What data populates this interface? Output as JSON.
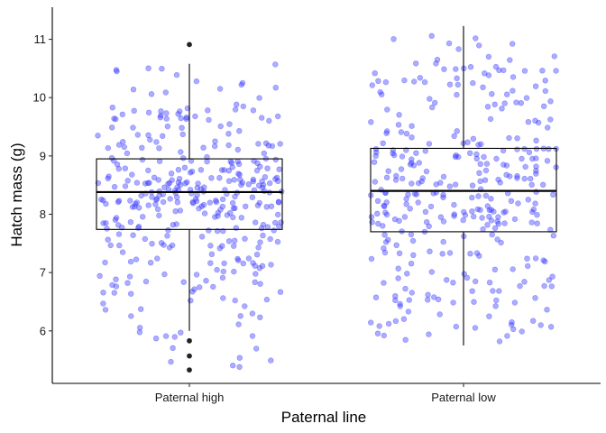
{
  "chart_data": {
    "type": "box",
    "xlabel": "Paternal line",
    "ylabel": "Hatch mass (g)",
    "categories": [
      "Paternal high",
      "Paternal low"
    ],
    "ylim": [
      5.1,
      11.55
    ],
    "y_ticks": [
      6,
      7,
      8,
      9,
      10,
      11
    ],
    "grid": false,
    "jitter_color": "#3333ff",
    "box_color": "#000000",
    "outlier_color": "#222222",
    "boxes": [
      {
        "category": "Paternal high",
        "q1": 7.74,
        "median": 8.38,
        "q3": 8.95,
        "whisker_low": 6.0,
        "whisker_high": 10.58,
        "outliers": [
          10.91,
          5.83,
          5.57,
          5.33
        ],
        "n_points": 360,
        "min": 5.33,
        "max": 10.91
      },
      {
        "category": "Paternal low",
        "q1": 7.7,
        "median": 8.4,
        "q3": 9.13,
        "whisker_low": 5.75,
        "whisker_high": 11.23,
        "outliers": [],
        "n_points": 340,
        "min": 5.75,
        "max": 11.23
      }
    ]
  }
}
